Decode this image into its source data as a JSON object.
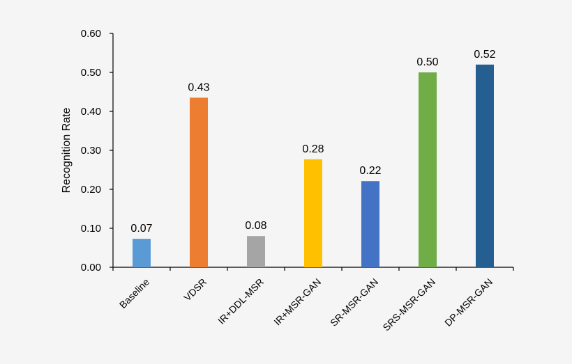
{
  "chart_data": {
    "type": "bar",
    "title": "",
    "xlabel": "",
    "ylabel": "Recognition Rate",
    "ylim": [
      0,
      0.6
    ],
    "yticks": [
      "0.00",
      "0.10",
      "0.20",
      "0.30",
      "0.40",
      "0.50",
      "0.60"
    ],
    "categories": [
      "Baseline",
      "VDSR",
      "IR+DDL-MSR",
      "IR+MSR-GAN",
      "SR-MSR-GAN",
      "SRS-MSR-GAN",
      "DP-MSR-GAN"
    ],
    "values": [
      0.073,
      0.435,
      0.08,
      0.277,
      0.221,
      0.5,
      0.52
    ],
    "data_labels": [
      "0.07",
      "0.43",
      "0.08",
      "0.28",
      "0.22",
      "0.50",
      "0.52"
    ],
    "colors": [
      "#5b9bd5",
      "#ed7d31",
      "#a5a5a5",
      "#ffc000",
      "#4472c4",
      "#70ad47",
      "#255e91"
    ],
    "grid": false,
    "legend": "none",
    "background": "#f5f5f5"
  }
}
